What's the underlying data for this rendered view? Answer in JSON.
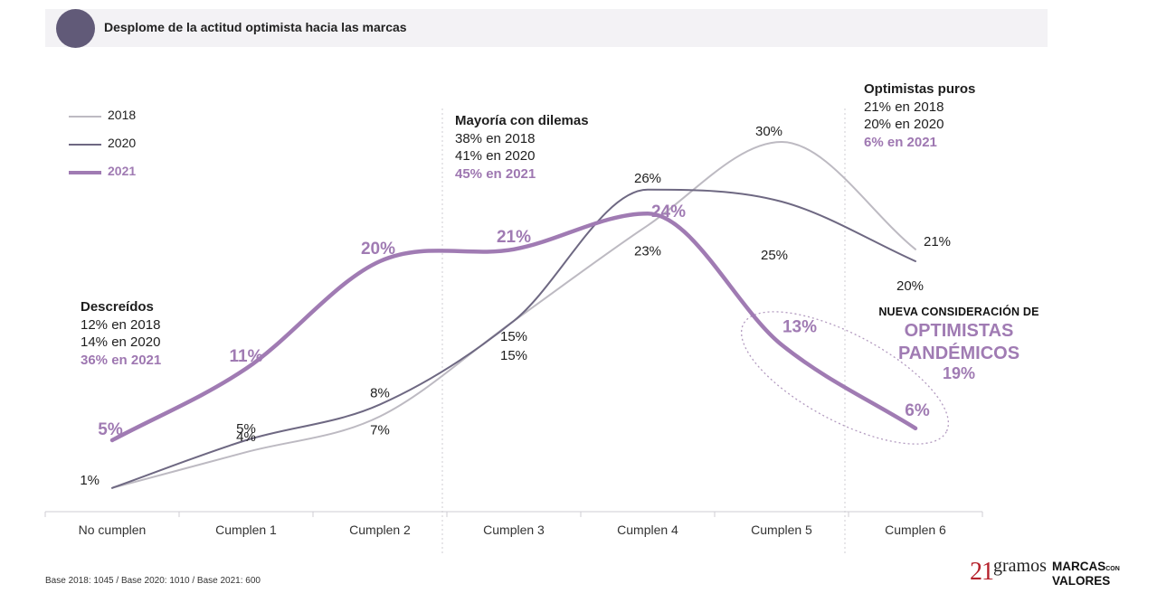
{
  "header": {
    "title": "Desplome de la actitud optimista hacia las marcas"
  },
  "colors": {
    "y2018": "#bdbac2",
    "y2020": "#6e6882",
    "y2021": "#a07bb3",
    "header_bg": "#f3f2f5",
    "header_dot": "#615a78"
  },
  "chart_data": {
    "type": "line",
    "title": "Desplome de la actitud optimista hacia las marcas",
    "xlabel": "",
    "ylabel": "",
    "grid": false,
    "legend_position": "top-left",
    "categories": [
      "No cumplen",
      "Cumplen 1",
      "Cumplen 2",
      "Cumplen 3",
      "Cumplen 4",
      "Cumplen 5",
      "Cumplen 6"
    ],
    "series": [
      {
        "name": "2018",
        "values": [
          1,
          4,
          7,
          15,
          23,
          30,
          21
        ],
        "labels": [
          "1%",
          "4%",
          "7%",
          "15%",
          "23%",
          "30%",
          "21%"
        ]
      },
      {
        "name": "2020",
        "values": [
          1,
          5,
          8,
          15,
          26,
          25,
          20
        ],
        "labels": [
          "",
          "5%",
          "8%",
          "15%",
          "26%",
          "25%",
          "20%"
        ]
      },
      {
        "name": "2021",
        "values": [
          5,
          11,
          20,
          21,
          24,
          13,
          6
        ],
        "labels": [
          "5%",
          "11%",
          "20%",
          "21%",
          "24%",
          "13%",
          "6%"
        ]
      }
    ],
    "annotations": {
      "descreidos": {
        "head": "Descreídos",
        "l1": "12% en 2018",
        "l2": "14% en 2020",
        "l3": "36% en 2021"
      },
      "mayoria": {
        "head": "Mayoría con dilemas",
        "l1": "38% en 2018",
        "l2": "41% en 2020",
        "l3": "45% en 2021"
      },
      "optimistas": {
        "head": "Optimistas puros",
        "l1": "21% en 2018",
        "l2": "20% en 2020",
        "l3": "6% en 2021"
      },
      "nueva": {
        "title": "NUEVA CONSIDERACIÓN DE",
        "line1": "OPTIMISTAS",
        "line2": "PANDÉMICOS",
        "pct": "19%"
      }
    }
  },
  "footer": {
    "base": "Base 2018: 1045 / Base 2020: 1010 / Base 2021: 600",
    "logo_21_number": "21",
    "logo_21_word": "gramos",
    "logo_mcv_line1": "MARCAS",
    "logo_mcv_con": "CON",
    "logo_mcv_line2": "VALORES"
  }
}
